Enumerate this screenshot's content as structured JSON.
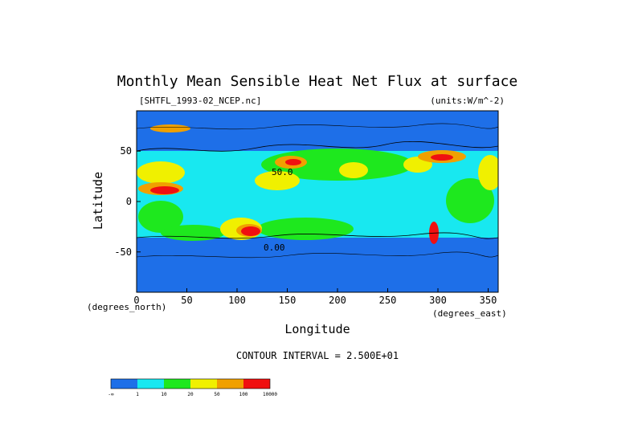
{
  "chart_data": {
    "type": "heatmap",
    "title": "Monthly Mean Sensible Heat Net Flux at surface",
    "file_label": "[SHTFL_1993-02_NCEP.nc]",
    "units_label": "(units:W/m^-2)",
    "xlabel": "Longitude",
    "ylabel": "Latitude",
    "x_unit_note": "(degrees_east)",
    "y_unit_note": "(degrees_north)",
    "xlim": [
      0,
      360
    ],
    "ylim": [
      -90,
      90
    ],
    "x_ticks": [
      "0",
      "50",
      "100",
      "150",
      "200",
      "250",
      "300",
      "350"
    ],
    "y_ticks": [
      "50",
      "0",
      "-50"
    ],
    "contour_interval": "CONTOUR INTERVAL = 2.500E+01",
    "contour_labels": [
      "50.0",
      "0.00"
    ],
    "colorbar": {
      "colors": [
        "#1e6fe8",
        "#18e8f0",
        "#1ee81e",
        "#f0f000",
        "#f0a000",
        "#f01010"
      ],
      "labels": [
        "-∞",
        "1",
        "10",
        "20",
        "50",
        "100",
        "10000"
      ]
    }
  }
}
